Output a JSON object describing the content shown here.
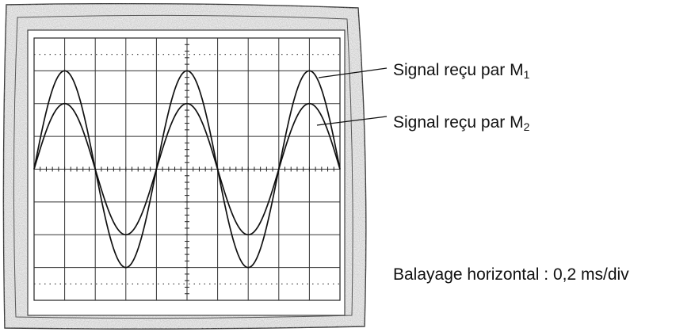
{
  "labels": {
    "signal_m1_text": "Signal reçu par M",
    "signal_m1_sub": "1",
    "signal_m2_text": "Signal reçu par M",
    "signal_m2_sub": "2",
    "sweep": "Balayage horizontal : 0,2 ms/div"
  },
  "screen": {
    "divisions_x": 10,
    "divisions_y": 8
  },
  "signals": [
    {
      "id": "M1",
      "amplitude_div": 3,
      "period_div": 4,
      "phase_div": 0
    },
    {
      "id": "M2",
      "amplitude_div": 2,
      "period_div": 4,
      "phase_div": 0
    }
  ]
}
